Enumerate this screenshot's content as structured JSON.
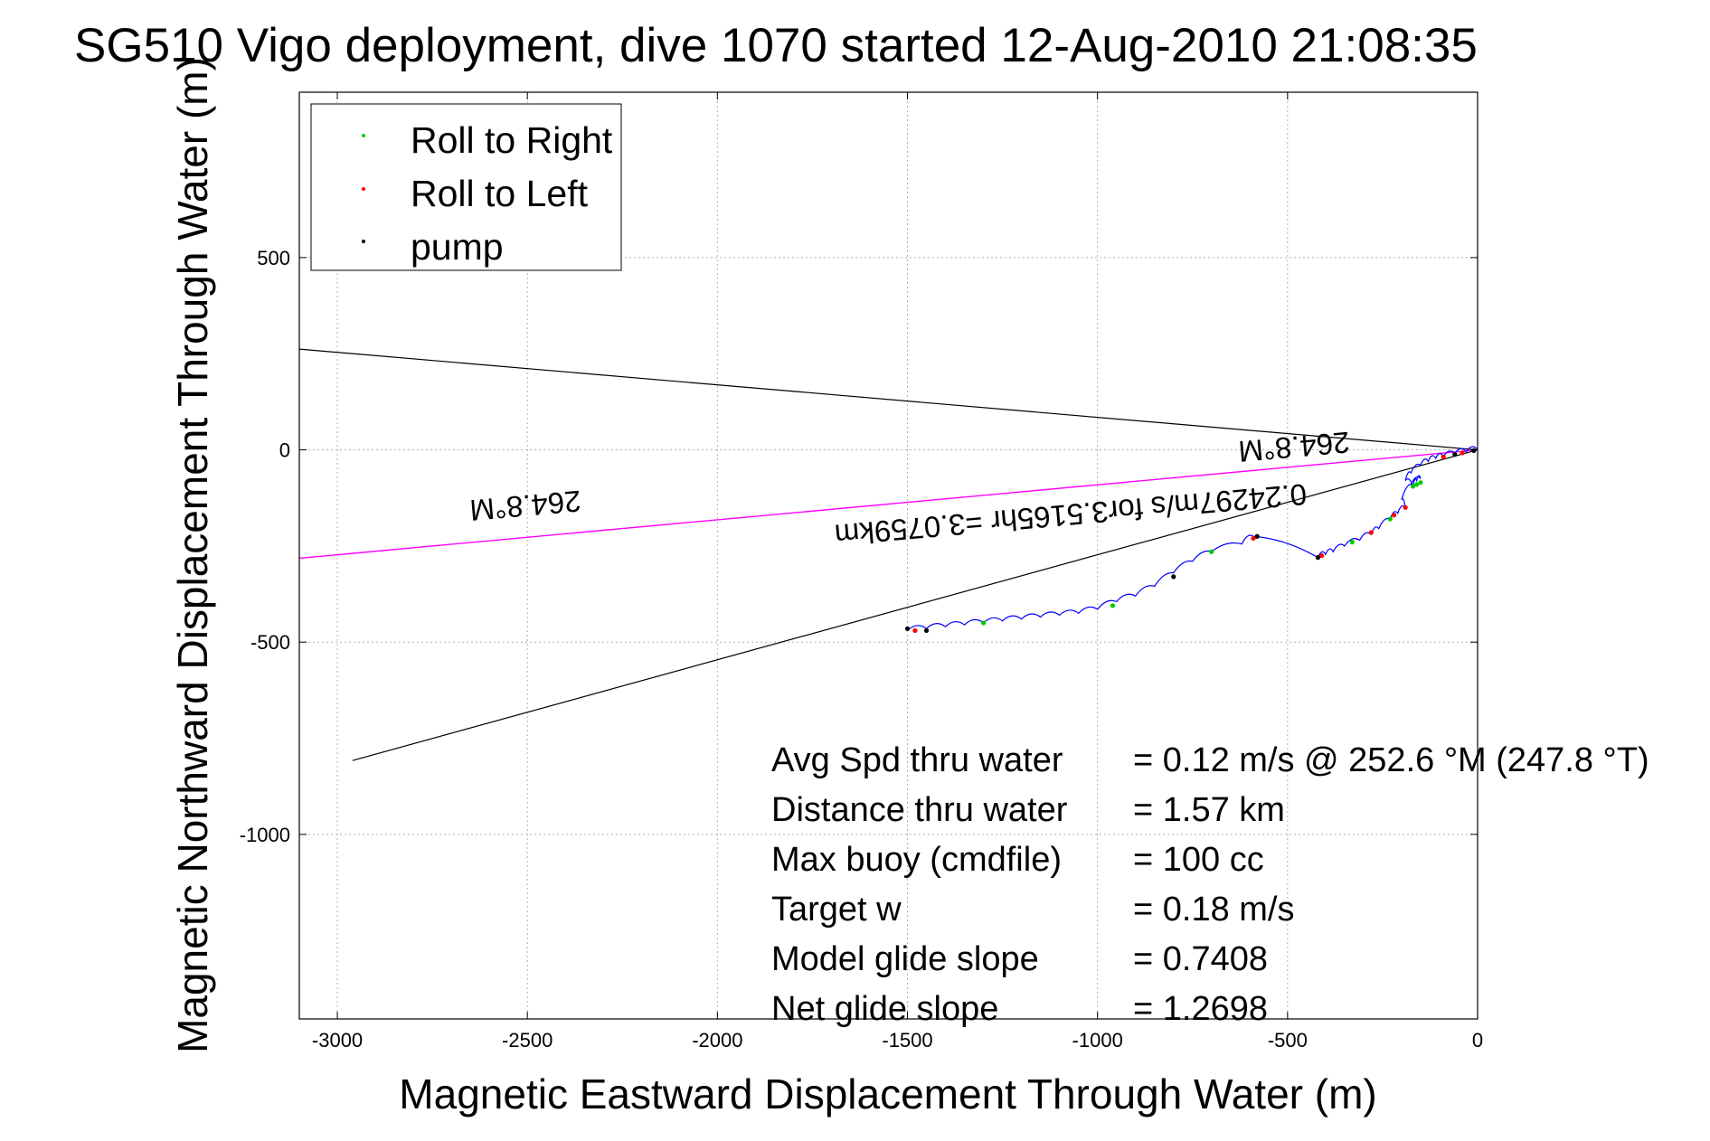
{
  "chart_data": {
    "type": "line",
    "title": "SG510 Vigo deployment, dive 1070 started 12-Aug-2010 21:08:35",
    "xlabel": "Magnetic Eastward Displacement Through Water (m)",
    "ylabel": "Magnetic Northward Displacement Through Water (m)",
    "xlim": [
      -3100,
      0
    ],
    "ylim": [
      -1480,
      930
    ],
    "xticks": [
      -3000,
      -2500,
      -2000,
      -1500,
      -1000,
      -500,
      0
    ],
    "yticks": [
      500,
      0,
      -500,
      -1000
    ],
    "xtick_labels": [
      "-3000",
      "-2500",
      "-2000",
      "-1500",
      "-1000",
      "-500",
      "0"
    ],
    "ytick_labels": [
      "500",
      "0",
      "-500",
      "-1000"
    ],
    "grid": true,
    "legend": {
      "placement": "top-left",
      "entries": [
        {
          "label": "Roll to Right",
          "color": "#00cc00"
        },
        {
          "label": "Roll to Left",
          "color": "#ff0000"
        },
        {
          "label": "pump",
          "color": "#000000"
        }
      ]
    },
    "colors": {
      "track": "#0000ff",
      "heading_line": "#ff00ff",
      "cone_lines": "#000000",
      "grid": "#b0b0b0"
    },
    "track": {
      "x": [
        0,
        -30,
        -60,
        -90,
        -110,
        -130,
        -150,
        -175,
        -190,
        -170,
        -160,
        -150,
        -175,
        -200,
        -190,
        -210,
        -230,
        -260,
        -280,
        -310,
        -350,
        -380,
        -400,
        -420,
        -590,
        -620,
        -700,
        -750,
        -800,
        -850,
        -900,
        -950,
        -1000,
        -1050,
        -1100,
        -1150,
        -1200,
        -1250,
        -1300,
        -1350,
        -1400,
        -1450,
        -1500
      ],
      "y": [
        0,
        -5,
        -10,
        -18,
        -22,
        -30,
        -40,
        -60,
        -80,
        -95,
        -80,
        -75,
        -90,
        -130,
        -150,
        -165,
        -180,
        -205,
        -220,
        -235,
        -250,
        -265,
        -272,
        -280,
        -225,
        -245,
        -265,
        -290,
        -320,
        -355,
        -380,
        -395,
        -415,
        -425,
        -430,
        -435,
        -440,
        -445,
        -450,
        -455,
        -460,
        -465,
        -470
      ]
    },
    "roll_right_points": {
      "x": [
        -150,
        -160,
        -170,
        -230,
        -330,
        -700,
        -960,
        -1300
      ],
      "y": [
        -85,
        -90,
        -95,
        -180,
        -240,
        -265,
        -405,
        -450
      ]
    },
    "roll_left_points": {
      "x": [
        -40,
        -90,
        -190,
        -220,
        -280,
        -410,
        -590,
        -1480
      ],
      "y": [
        -8,
        -18,
        -150,
        -170,
        -215,
        -275,
        -230,
        -470
      ]
    },
    "pump_points": {
      "x": [
        -10,
        -60,
        -420,
        -580,
        -800,
        -1450,
        -1500
      ],
      "y": [
        -2,
        -12,
        -280,
        -225,
        -330,
        -470,
        -465
      ]
    },
    "heading_line": {
      "label": "264.8°M",
      "x": [
        0,
        -3100
      ],
      "y": [
        0,
        -282
      ]
    },
    "cone_lines": [
      {
        "x": [
          0,
          -3100
        ],
        "y": [
          0,
          262
        ]
      },
      {
        "x": [
          0,
          -2960
        ],
        "y": [
          0,
          -808
        ]
      }
    ],
    "annotations": [
      {
        "text": "264.8°M"
      },
      {
        "text": "0.24297m/s for3.5165hr =3.0759km"
      },
      {
        "text": "264.8°M"
      }
    ],
    "stats": [
      {
        "label": "Avg Spd thru water",
        "value": "=  0.12 m/s @ 252.6 °M (247.8 °T)"
      },
      {
        "label": "Distance thru water",
        "value": "=  1.57 km"
      },
      {
        "label": "Max buoy (cmdfile)",
        "value": "= 100 cc"
      },
      {
        "label": "Target w",
        "value": "= 0.18 m/s"
      },
      {
        "label": "Model glide slope",
        "value": "= 0.7408"
      },
      {
        "label": "Net glide slope",
        "value": "= 1.2698"
      }
    ]
  }
}
